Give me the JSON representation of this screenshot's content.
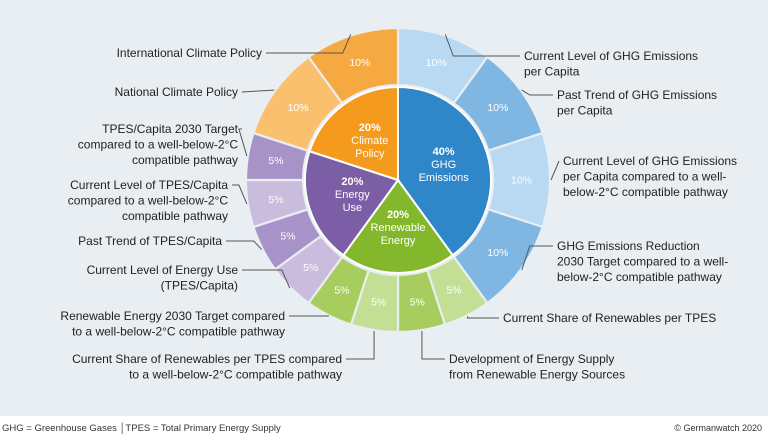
{
  "chart_data": {
    "type": "pie",
    "inner_categories": [
      {
        "key": "ghg",
        "name_lines": [
          "GHG",
          "Emissions"
        ],
        "value": 40,
        "value_text": "40%",
        "color": "#2f86c8"
      },
      {
        "key": "renew",
        "name_lines": [
          "Renewable",
          "Energy"
        ],
        "value": 20,
        "value_text": "20%",
        "color": "#84b82c"
      },
      {
        "key": "energy",
        "name_lines": [
          "Energy",
          "Use"
        ],
        "value": 20,
        "value_text": "20%",
        "color": "#7c5ea6"
      },
      {
        "key": "policy",
        "name_lines": [
          "Climate",
          "Policy"
        ],
        "value": 20,
        "value_text": "20%",
        "color": "#f49a1c"
      }
    ],
    "indicators": [
      {
        "category": "ghg",
        "value": 10,
        "value_text": "10%",
        "color": "#b9d8f1",
        "label_lines": [
          "Current Level of GHG Emissions",
          "per Capita"
        ]
      },
      {
        "category": "ghg",
        "value": 10,
        "value_text": "10%",
        "color": "#7fb6e2",
        "label_lines": [
          "Past Trend of GHG Emissions",
          "per Capita"
        ]
      },
      {
        "category": "ghg",
        "value": 10,
        "value_text": "10%",
        "color": "#b9d8f1",
        "label_lines": [
          "Current Level of GHG Emissions",
          "per Capita compared to a well-",
          "below-2°C compatible pathway"
        ]
      },
      {
        "category": "ghg",
        "value": 10,
        "value_text": "10%",
        "color": "#7fb6e2",
        "label_lines": [
          "GHG Emissions Reduction",
          "2030 Target compared to a well-",
          "below-2°C compatible pathway"
        ]
      },
      {
        "category": "renew",
        "value": 5,
        "value_text": "5%",
        "color": "#c3df95",
        "label_lines": [
          "Current Share of Renewables per TPES"
        ]
      },
      {
        "category": "renew",
        "value": 5,
        "value_text": "5%",
        "color": "#a6cd5e",
        "label_lines": [
          "Development of Energy Supply",
          "from Renewable Energy Sources"
        ]
      },
      {
        "category": "renew",
        "value": 5,
        "value_text": "5%",
        "color": "#c3df95",
        "label_lines": [
          "Current Share of Renewables per TPES compared",
          "to a well-below-2°C compatible pathway"
        ]
      },
      {
        "category": "renew",
        "value": 5,
        "value_text": "5%",
        "color": "#a6cd5e",
        "label_lines": [
          "Renewable Energy 2030 Target compared",
          "to a well-below-2°C compatible pathway"
        ]
      },
      {
        "category": "energy",
        "value": 5,
        "value_text": "5%",
        "color": "#c9bcdc",
        "label_lines": [
          "Current Level of Energy Use",
          "(TPES/Capita)"
        ]
      },
      {
        "category": "energy",
        "value": 5,
        "value_text": "5%",
        "color": "#a893c8",
        "label_lines": [
          "Past Trend of TPES/Capita"
        ]
      },
      {
        "category": "energy",
        "value": 5,
        "value_text": "5%",
        "color": "#c9bcdc",
        "label_lines": [
          "Current Level of TPES/Capita",
          "compared to a well-below-2°C",
          "compatible pathway"
        ]
      },
      {
        "category": "energy",
        "value": 5,
        "value_text": "5%",
        "color": "#a893c8",
        "label_lines": [
          "TPES/Capita 2030 Target",
          "compared to a well-below-2°C",
          "compatible pathway"
        ]
      },
      {
        "category": "policy",
        "value": 10,
        "value_text": "10%",
        "color": "#fbc06e",
        "label_lines": [
          "National Climate Policy"
        ]
      },
      {
        "category": "policy",
        "value": 10,
        "value_text": "10%",
        "color": "#f7a941",
        "label_lines": [
          "International Climate Policy"
        ]
      }
    ]
  },
  "footer": {
    "note": "GHG = Greenhouse Gases │TPES = Total Primary Energy Supply",
    "copyright": "© Germanwatch 2020"
  }
}
